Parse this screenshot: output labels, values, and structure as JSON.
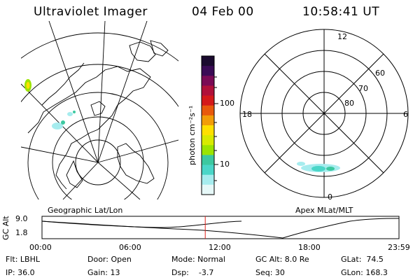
{
  "header": {
    "instrument": "Ultraviolet Imager",
    "date": "04 Feb 00",
    "time": "10:58:41 UT"
  },
  "colorbar": {
    "unit": "photon cm⁻²s⁻¹",
    "ticks": [
      "100",
      "10"
    ],
    "colors": [
      "#1a0a2e",
      "#3a0a55",
      "#7a0a55",
      "#b0103a",
      "#d4191a",
      "#e8590c",
      "#f29d08",
      "#ffe000",
      "#d8ea00",
      "#9be400",
      "#3cc8a0",
      "#4ad6c8",
      "#a6ecee",
      "#e6f8f8"
    ]
  },
  "panels": {
    "left_label": "Geographic Lat/Lon",
    "right_label": "Apex MLat/MLT"
  },
  "polar": {
    "mlt_labels": {
      "top": "12",
      "left": "18",
      "right": "6",
      "bottom": "0"
    },
    "lat_labels": [
      "60",
      "70",
      "80"
    ]
  },
  "timeline": {
    "ylabel": "GC Alt",
    "y_ticks": [
      "9.0",
      "1.8"
    ],
    "x_ticks": [
      "00:00",
      "06:00",
      "12:00",
      "18:00",
      "23:59"
    ],
    "marker_time": "10:58",
    "marker_color": "#e0201a"
  },
  "info": {
    "filt": "Flt: LBHL",
    "ip": "IP: 36.0",
    "door": "Door: Open",
    "gain": "Gain: 13",
    "mode": "Mode: Normal",
    "dsp": "Dsp:    -3.7",
    "gcalt": "GC Alt: 8.0 Re",
    "seq": "Seq: 30",
    "glat": "GLat:  74.5",
    "glon": "GLon: 168.3"
  }
}
